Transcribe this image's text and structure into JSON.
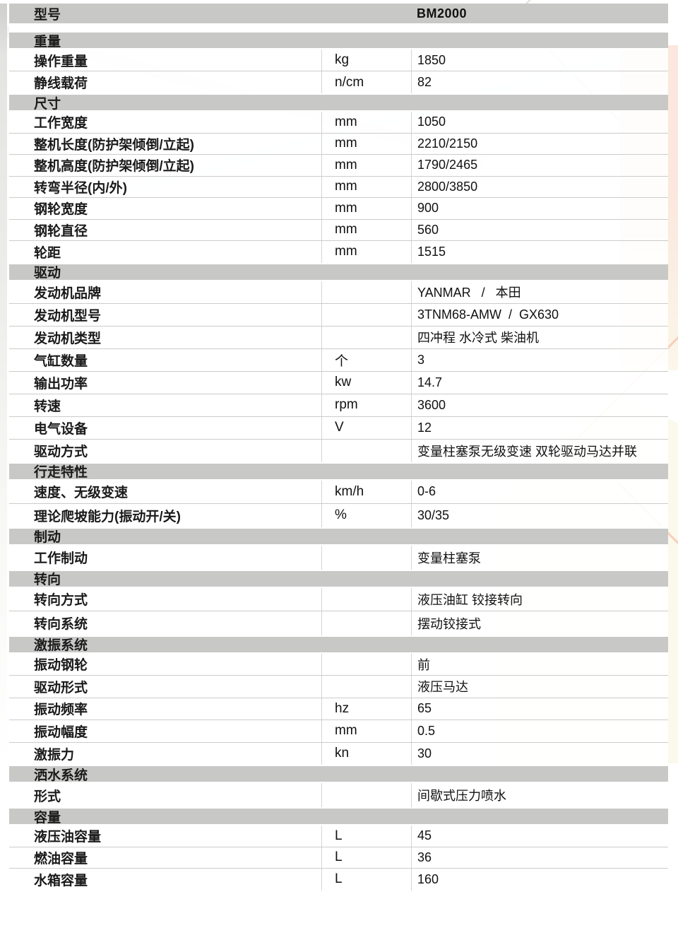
{
  "model_row": {
    "label": "型号",
    "value": "BM2000"
  },
  "sections": [
    {
      "title": "重量",
      "rows": [
        {
          "label": "操作重量",
          "unit": "kg",
          "value": "1850"
        },
        {
          "label": "静线载荷",
          "unit": "n/cm",
          "value": "82"
        }
      ]
    },
    {
      "title": "尺寸",
      "rows": [
        {
          "label": "工作宽度",
          "unit": "mm",
          "value": "1050"
        },
        {
          "label": "整机长度(防护架倾倒/立起)",
          "unit": "mm",
          "value": "2210/2150"
        },
        {
          "label": "整机高度(防护架倾倒/立起)",
          "unit": "mm",
          "value": "1790/2465"
        },
        {
          "label": "转弯半径(内/外)",
          "unit": "mm",
          "value": "2800/3850"
        },
        {
          "label": "钢轮宽度",
          "unit": "mm",
          "value": "900"
        },
        {
          "label": "钢轮直径",
          "unit": "mm",
          "value": "560"
        },
        {
          "label": "轮距",
          "unit": "mm",
          "value": "1515"
        }
      ]
    },
    {
      "title": "驱动",
      "rows": [
        {
          "label": "发动机品牌",
          "unit": "",
          "value": "YANMAR   /   本田"
        },
        {
          "label": "发动机型号",
          "unit": "",
          "value": "3TNM68-AMW  /  GX630"
        },
        {
          "label": "发动机类型",
          "unit": "",
          "value": "四冲程 水冷式 柴油机"
        },
        {
          "label": "气缸数量",
          "unit": "个",
          "value": "3"
        },
        {
          "label": "输出功率",
          "unit": "kw",
          "value": "14.7"
        },
        {
          "label": "转速",
          "unit": "rpm",
          "value": "3600"
        },
        {
          "label": "电气设备",
          "unit": "V",
          "value": "12"
        },
        {
          "label": "驱动方式",
          "unit": "",
          "value": "变量柱塞泵无级变速 双轮驱动马达并联"
        }
      ]
    },
    {
      "title": "行走特性",
      "rows": [
        {
          "label": "速度、无级变速",
          "unit": "km/h",
          "value": "0-6"
        },
        {
          "label": "理论爬坡能力(振动开/关)",
          "unit": "%",
          "value": "30/35"
        }
      ]
    },
    {
      "title": "制动",
      "rows": [
        {
          "label": "工作制动",
          "unit": "",
          "value": "变量柱塞泵"
        }
      ]
    },
    {
      "title": "转向",
      "rows": [
        {
          "label": "转向方式",
          "unit": "",
          "value": "液压油缸 铰接转向"
        },
        {
          "label": "转向系统",
          "unit": "",
          "value": "摆动铰接式"
        }
      ]
    },
    {
      "title": "激振系统",
      "rows": [
        {
          "label": "振动钢轮",
          "unit": "",
          "value": "前"
        },
        {
          "label": "驱动形式",
          "unit": "",
          "value": "液压马达"
        },
        {
          "label": "振动频率",
          "unit": "hz",
          "value": "65"
        },
        {
          "label": "振动幅度",
          "unit": "mm",
          "value": "0.5"
        },
        {
          "label": "激振力",
          "unit": "kn",
          "value": "30"
        }
      ]
    },
    {
      "title": "洒水系统",
      "rows": [
        {
          "label": "形式",
          "unit": "",
          "value": "间歇式压力喷水"
        }
      ]
    },
    {
      "title": "容量",
      "rows": [
        {
          "label": "液压油容量",
          "unit": "L",
          "value": "45"
        },
        {
          "label": "燃油容量",
          "unit": "L",
          "value": "36"
        },
        {
          "label": "水箱容量",
          "unit": "L",
          "value": "160"
        }
      ]
    }
  ],
  "colors": {
    "section_bar": "#c8c9c7",
    "row_separator": "#cbccca",
    "accent_peach": "#fbe7dd",
    "accent_salmon_outline": "#f6cfba",
    "accent_cream": "#fbf8ec"
  }
}
